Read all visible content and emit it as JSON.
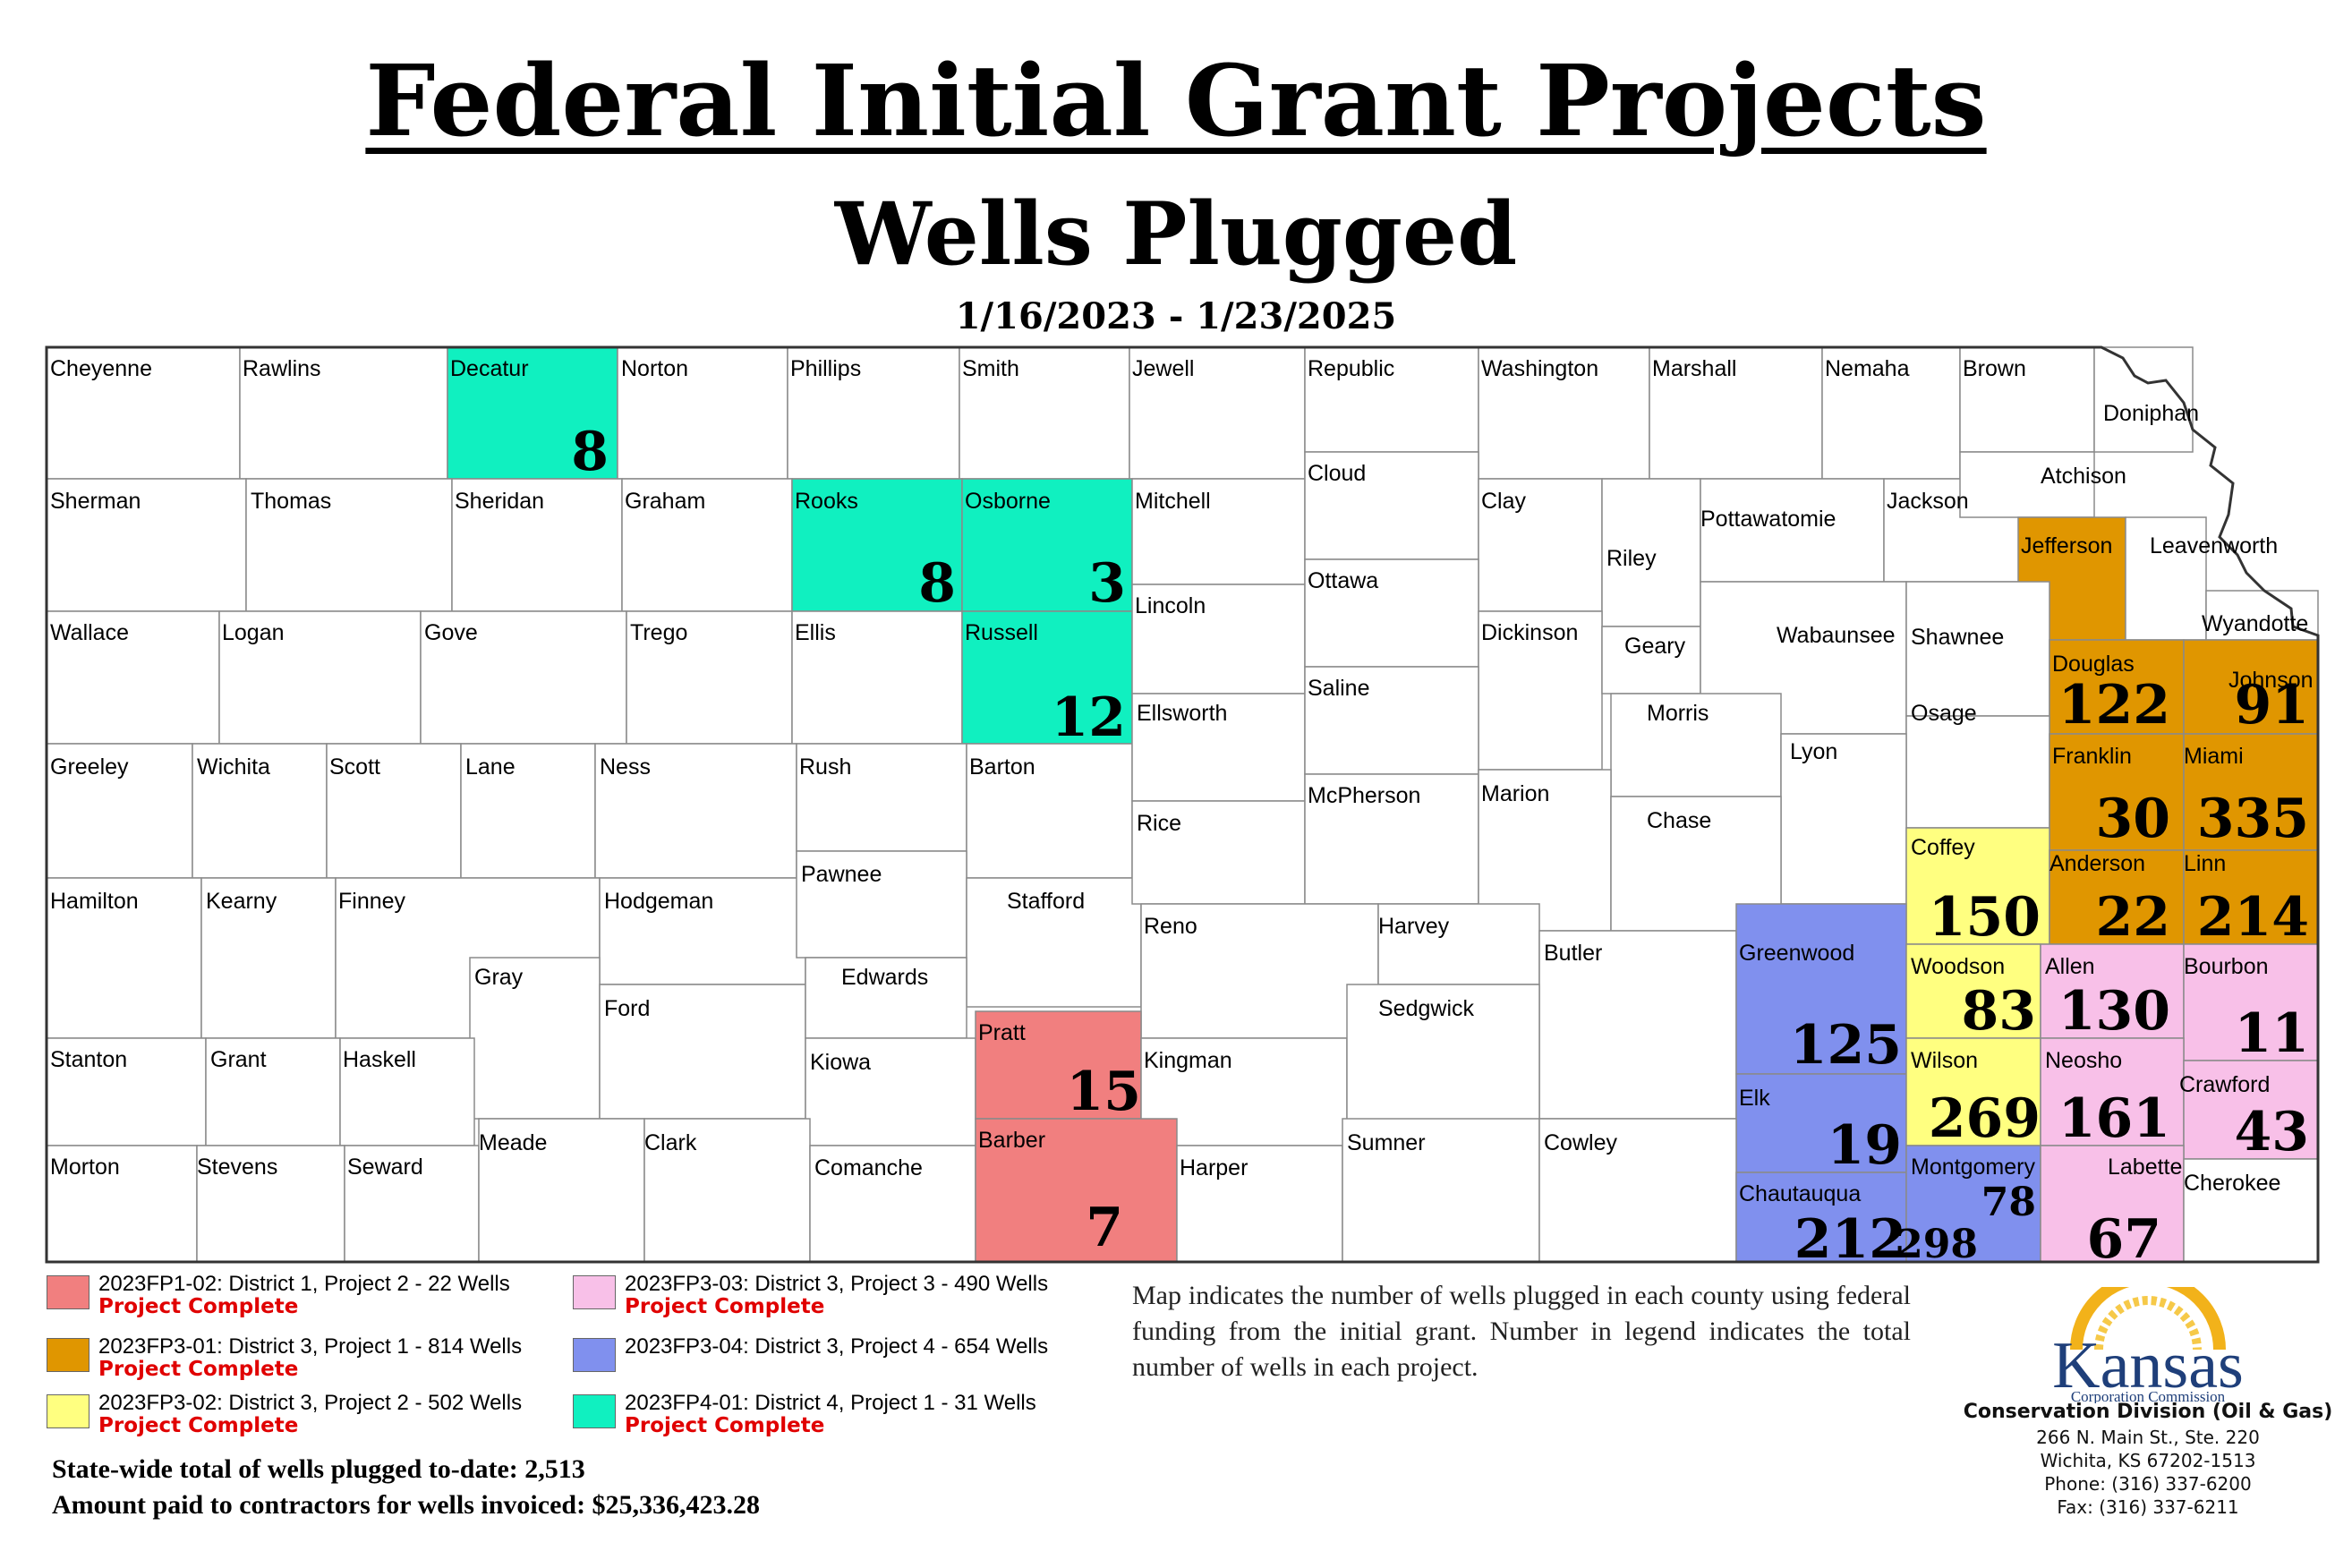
{
  "title": "Federal Initial Grant Projects",
  "subtitle": "Wells Plugged",
  "date_range": "1/16/2023 - 1/23/2025",
  "colors": {
    "project_1_02": "#f17f7f",
    "project_3_01": "#e09600",
    "project_3_02": "#ffff80",
    "project_3_03": "#f8c0e8",
    "project_3_04": "#8090ee",
    "project_4_01": "#10f0c0",
    "status_text": "#e00000"
  },
  "counties": [
    {
      "name": "Cheyenne"
    },
    {
      "name": "Rawlins"
    },
    {
      "name": "Decatur",
      "wells": "8",
      "project": "project_4_01"
    },
    {
      "name": "Norton"
    },
    {
      "name": "Phillips"
    },
    {
      "name": "Smith"
    },
    {
      "name": "Jewell"
    },
    {
      "name": "Republic"
    },
    {
      "name": "Washington"
    },
    {
      "name": "Marshall"
    },
    {
      "name": "Nemaha"
    },
    {
      "name": "Brown"
    },
    {
      "name": "Doniphan"
    },
    {
      "name": "Sherman"
    },
    {
      "name": "Thomas"
    },
    {
      "name": "Sheridan"
    },
    {
      "name": "Graham"
    },
    {
      "name": "Rooks",
      "wells": "8",
      "project": "project_4_01"
    },
    {
      "name": "Osborne",
      "wells": "3",
      "project": "project_4_01"
    },
    {
      "name": "Mitchell"
    },
    {
      "name": "Cloud"
    },
    {
      "name": "Clay"
    },
    {
      "name": "Riley"
    },
    {
      "name": "Pottawatomie"
    },
    {
      "name": "Jackson"
    },
    {
      "name": "Atchison"
    },
    {
      "name": "Jefferson",
      "project": "project_3_01"
    },
    {
      "name": "Leavenworth"
    },
    {
      "name": "Wallace"
    },
    {
      "name": "Logan"
    },
    {
      "name": "Gove"
    },
    {
      "name": "Trego"
    },
    {
      "name": "Ellis"
    },
    {
      "name": "Russell",
      "wells": "12",
      "project": "project_4_01"
    },
    {
      "name": "Lincoln"
    },
    {
      "name": "Ottawa"
    },
    {
      "name": "Dickinson"
    },
    {
      "name": "Geary"
    },
    {
      "name": "Wabaunsee"
    },
    {
      "name": "Shawnee"
    },
    {
      "name": "Wyandotte"
    },
    {
      "name": "Douglas",
      "wells": "122",
      "project": "project_3_01"
    },
    {
      "name": "Johnson",
      "wells": "91",
      "project": "project_3_01"
    },
    {
      "name": "Greeley"
    },
    {
      "name": "Wichita"
    },
    {
      "name": "Scott"
    },
    {
      "name": "Lane"
    },
    {
      "name": "Ness"
    },
    {
      "name": "Rush"
    },
    {
      "name": "Barton"
    },
    {
      "name": "Ellsworth"
    },
    {
      "name": "Saline"
    },
    {
      "name": "Morris"
    },
    {
      "name": "Osage"
    },
    {
      "name": "Lyon"
    },
    {
      "name": "Franklin",
      "wells": "30",
      "project": "project_3_01"
    },
    {
      "name": "Miami",
      "wells": "335",
      "project": "project_3_01"
    },
    {
      "name": "Hamilton"
    },
    {
      "name": "Kearny"
    },
    {
      "name": "Finney"
    },
    {
      "name": "Hodgeman"
    },
    {
      "name": "Pawnee"
    },
    {
      "name": "Stafford"
    },
    {
      "name": "Rice"
    },
    {
      "name": "McPherson"
    },
    {
      "name": "Marion"
    },
    {
      "name": "Chase"
    },
    {
      "name": "Coffey",
      "wells": "150",
      "project": "project_3_02"
    },
    {
      "name": "Anderson",
      "wells": "22",
      "project": "project_3_01"
    },
    {
      "name": "Linn",
      "wells": "214",
      "project": "project_3_01"
    },
    {
      "name": "Gray"
    },
    {
      "name": "Ford"
    },
    {
      "name": "Edwards"
    },
    {
      "name": "Reno"
    },
    {
      "name": "Harvey"
    },
    {
      "name": "Butler"
    },
    {
      "name": "Greenwood",
      "wells": "125",
      "project": "project_3_04"
    },
    {
      "name": "Woodson",
      "wells": "83",
      "project": "project_3_02"
    },
    {
      "name": "Allen",
      "wells": "130",
      "project": "project_3_03"
    },
    {
      "name": "Bourbon",
      "wells": "11",
      "project": "project_3_03"
    },
    {
      "name": "Stanton"
    },
    {
      "name": "Grant"
    },
    {
      "name": "Haskell"
    },
    {
      "name": "Kiowa"
    },
    {
      "name": "Pratt",
      "wells": "15",
      "project": "project_1_02"
    },
    {
      "name": "Kingman"
    },
    {
      "name": "Sedgwick"
    },
    {
      "name": "Elk",
      "wells": "19",
      "project": "project_3_04"
    },
    {
      "name": "Wilson",
      "wells": "269",
      "project": "project_3_02"
    },
    {
      "name": "Neosho",
      "wells": "161",
      "project": "project_3_03"
    },
    {
      "name": "Crawford",
      "wells": "43",
      "project": "project_3_03"
    },
    {
      "name": "Morton"
    },
    {
      "name": "Stevens"
    },
    {
      "name": "Seward"
    },
    {
      "name": "Meade"
    },
    {
      "name": "Clark"
    },
    {
      "name": "Comanche"
    },
    {
      "name": "Barber",
      "wells": "7",
      "project": "project_1_02"
    },
    {
      "name": "Harper"
    },
    {
      "name": "Sumner"
    },
    {
      "name": "Cowley"
    },
    {
      "name": "Chautauqua",
      "wells": "212",
      "project": "project_3_04"
    },
    {
      "name": "Montgomery",
      "wells": "298",
      "project": "project_3_04"
    },
    {
      "name": "Labette",
      "wells": "67",
      "project": "project_3_03"
    },
    {
      "name": "Cherokee"
    }
  ],
  "extra_labels": [
    {
      "text": "78"
    }
  ],
  "legend": [
    {
      "key": "project_1_02",
      "text": "2023FP1-02: District 1, Project 2 - 22 Wells",
      "status": "Project Complete"
    },
    {
      "key": "project_3_03",
      "text": "2023FP3-03: District 3, Project 3 - 490 Wells",
      "status": "Project Complete"
    },
    {
      "key": "project_3_01",
      "text": "2023FP3-01: District 3, Project 1 - 814 Wells",
      "status": "Project Complete"
    },
    {
      "key": "project_3_04",
      "text": "2023FP3-04: District 3, Project 4 - 654 Wells",
      "status": ""
    },
    {
      "key": "project_3_02",
      "text": "2023FP3-02: District 3, Project 2 - 502 Wells",
      "status": "Project Complete"
    },
    {
      "key": "project_4_01",
      "text": "2023FP4-01: District 4, Project 1 - 31  Wells",
      "status": "Project Complete"
    }
  ],
  "statewide_total": "State-wide total of wells plugged to-date: 2,513",
  "amount_paid": "Amount paid to contractors for wells invoiced: $25,336,423.28",
  "note": "Map indicates the number of wells plugged in each county using federal funding from the initial grant. Number in legend indicates the total number of wells in each project.",
  "logo": {
    "name": "Kansas",
    "tagline": "Corporation Commission",
    "motto": "AD ASTRA PER ASPERA"
  },
  "agency": {
    "division": "Conservation Division (Oil & Gas)",
    "address1": "266 N. Main St., Ste. 220",
    "address2": "Wichita, KS 67202-1513",
    "phone": "Phone: (316) 337-6200",
    "fax": "Fax: (316) 337-6211"
  }
}
